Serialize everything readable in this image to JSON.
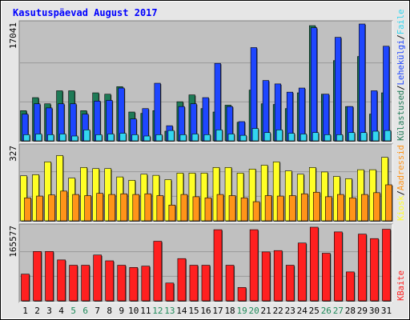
{
  "title": "Kasutuspäevad August 2017",
  "colors": {
    "title": "#0000ff",
    "panel_bg": "#c0c0c0",
    "frame_dark": "#808080",
    "frame_light": "#ffffff",
    "grid": "#999999",
    "visits": "#1e7a56",
    "pages": "#1e46ff",
    "files": "#33d6f0",
    "hits": "#ffff26",
    "sites": "#ff9419",
    "kbytes": "#ff2020",
    "weekend_label": "#1f8a5a",
    "weekday_label": "#000000"
  },
  "chart_data": [
    {
      "type": "bar",
      "panel": "top",
      "ymax_label": "17041",
      "ylim": [
        0,
        17041
      ],
      "categories": [
        "1",
        "2",
        "3",
        "4",
        "5",
        "6",
        "7",
        "8",
        "9",
        "10",
        "11",
        "12",
        "13",
        "14",
        "15",
        "16",
        "17",
        "18",
        "19",
        "20",
        "21",
        "22",
        "23",
        "24",
        "25",
        "26",
        "27",
        "28",
        "29",
        "30",
        "31"
      ],
      "weekend_days": [
        "5",
        "6",
        "12",
        "13",
        "19",
        "20",
        "26",
        "27"
      ],
      "series": [
        {
          "name": "Külastused",
          "legend_color": "#1e7a56",
          "values": [
            4400,
            6300,
            5400,
            7300,
            7300,
            4400,
            7000,
            6800,
            7900,
            4200,
            4000,
            4400,
            1400,
            5700,
            6700,
            4700,
            4200,
            5200,
            2700,
            7400,
            5400,
            5300,
            4700,
            7000,
            16800,
            6800,
            11700,
            5000,
            12300,
            3900,
            7000
          ]
        },
        {
          "name": "Lehekülgi",
          "legend_color": "#1e46ff",
          "values": [
            3900,
            5400,
            4800,
            5400,
            5400,
            3900,
            5800,
            5900,
            7700,
            3200,
            4700,
            8400,
            2200,
            5000,
            5400,
            6300,
            11300,
            5000,
            2800,
            13600,
            8800,
            8300,
            7100,
            7700,
            16500,
            6800,
            15100,
            5000,
            17041,
            7300,
            13800
          ]
        },
        {
          "name": "Faile",
          "legend_color": "#33d6f0",
          "values": [
            900,
            1000,
            900,
            1000,
            700,
            1600,
            900,
            1000,
            1100,
            900,
            700,
            900,
            1500,
            900,
            1000,
            900,
            1600,
            1000,
            800,
            1800,
            1200,
            1600,
            1100,
            1000,
            1200,
            900,
            900,
            1200,
            1200,
            1400,
            1500
          ]
        }
      ]
    },
    {
      "type": "bar",
      "panel": "middle",
      "ymax_label": "327",
      "ylim": [
        0,
        327
      ],
      "categories": [
        "1",
        "2",
        "3",
        "4",
        "5",
        "6",
        "7",
        "8",
        "9",
        "10",
        "11",
        "12",
        "13",
        "14",
        "15",
        "16",
        "17",
        "18",
        "19",
        "20",
        "21",
        "22",
        "23",
        "24",
        "25",
        "26",
        "27",
        "28",
        "29",
        "30",
        "31"
      ],
      "series": [
        {
          "name": "Kiosk",
          "legend_color": "#ffff26",
          "values": [
            200,
            205,
            262,
            290,
            190,
            237,
            232,
            232,
            195,
            180,
            207,
            202,
            183,
            212,
            212,
            212,
            237,
            237,
            212,
            230,
            247,
            262,
            222,
            207,
            237,
            217,
            197,
            187,
            227,
            227,
            282
          ]
        },
        {
          "name": "Aadressid",
          "legend_color": "#ff9419",
          "values": [
            102,
            110,
            115,
            132,
            117,
            112,
            122,
            117,
            120,
            117,
            120,
            112,
            70,
            117,
            107,
            102,
            117,
            112,
            102,
            85,
            112,
            110,
            112,
            120,
            127,
            107,
            117,
            102,
            117,
            125,
            160
          ]
        }
      ]
    },
    {
      "type": "bar",
      "panel": "bottom",
      "ymax_label": "165577",
      "ylim": [
        0,
        165577
      ],
      "categories": [
        "1",
        "2",
        "3",
        "4",
        "5",
        "6",
        "7",
        "8",
        "9",
        "10",
        "11",
        "12",
        "13",
        "14",
        "15",
        "16",
        "17",
        "18",
        "19",
        "20",
        "21",
        "22",
        "23",
        "24",
        "25",
        "26",
        "27",
        "28",
        "29",
        "30",
        "31"
      ],
      "series": [
        {
          "name": "KBaite",
          "legend_color": "#ff2020",
          "values": [
            60000,
            111000,
            111000,
            92000,
            80000,
            80000,
            103000,
            90000,
            80000,
            75000,
            78000,
            134000,
            40000,
            95000,
            80000,
            80000,
            160000,
            80000,
            30000,
            160000,
            110000,
            113000,
            80000,
            130000,
            165577,
            107000,
            155000,
            65000,
            150000,
            140000,
            161000
          ]
        }
      ]
    }
  ]
}
